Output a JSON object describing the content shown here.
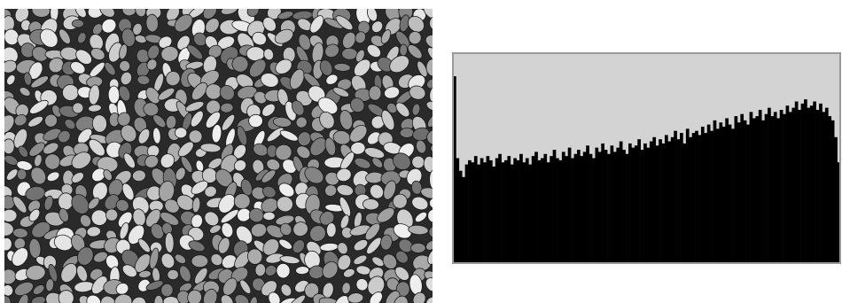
{
  "chart_data": {
    "type": "bar",
    "values": [
      89,
      50,
      44,
      41,
      47,
      49,
      48,
      51,
      47,
      50,
      48,
      51,
      49,
      46,
      50,
      52,
      48,
      49,
      51,
      47,
      50,
      49,
      52,
      48,
      50,
      47,
      51,
      53,
      49,
      50,
      52,
      48,
      51,
      54,
      50,
      49,
      53,
      51,
      55,
      50,
      52,
      54,
      51,
      53,
      56,
      52,
      50,
      55,
      53,
      57,
      54,
      52,
      56,
      53,
      55,
      58,
      54,
      52,
      57,
      55,
      56,
      59,
      54,
      57,
      55,
      58,
      60,
      56,
      59,
      57,
      61,
      58,
      60,
      63,
      59,
      62,
      57,
      64,
      60,
      62,
      63,
      61,
      65,
      62,
      66,
      63,
      68,
      64,
      67,
      65,
      69,
      66,
      64,
      70,
      67,
      71,
      68,
      66,
      72,
      69,
      70,
      73,
      68,
      71,
      74,
      70,
      72,
      69,
      73,
      71,
      75,
      72,
      74,
      77,
      73,
      76,
      78,
      74,
      75,
      77,
      73,
      76,
      72,
      74,
      70,
      68,
      60,
      48
    ],
    "color": "#000000",
    "ylim": [
      0,
      100
    ],
    "grid": false
  }
}
